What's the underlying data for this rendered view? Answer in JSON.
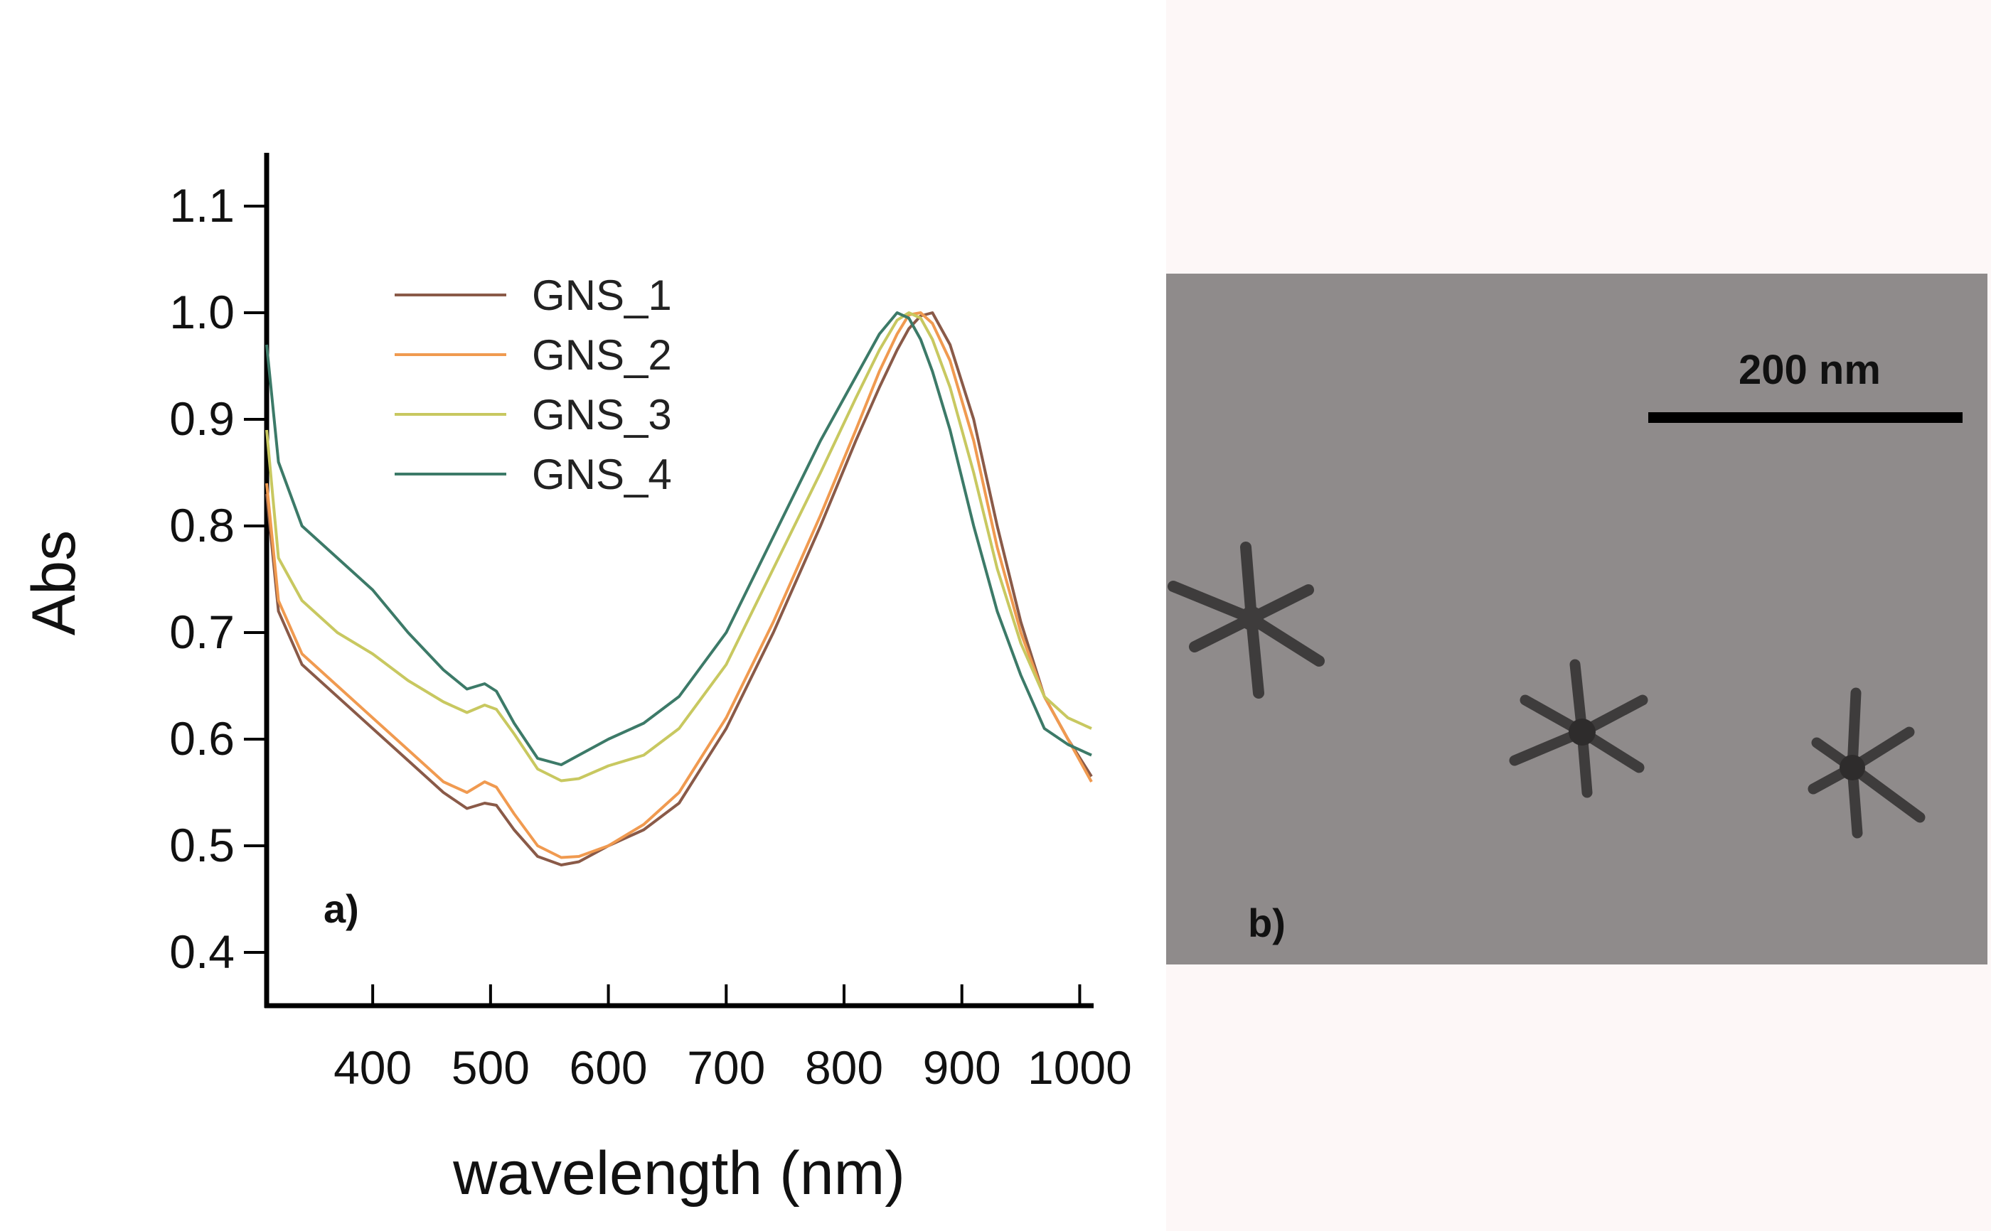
{
  "chart_data": {
    "type": "line",
    "title": "",
    "xlabel": "wavelength (nm)",
    "ylabel": "Abs",
    "xlim": [
      310,
      1010
    ],
    "ylim": [
      0.35,
      1.15
    ],
    "xticks": [
      400,
      500,
      600,
      700,
      800,
      900,
      1000
    ],
    "xtick_labels": [
      "400",
      "500",
      "600",
      "700",
      "800",
      "900",
      "1000"
    ],
    "yticks": [
      0.4,
      0.5,
      0.6,
      0.7,
      0.8,
      0.9,
      1.0,
      1.1
    ],
    "ytick_labels": [
      "0.4",
      "0.5",
      "0.6",
      "0.7",
      "0.8",
      "0.9",
      "1.0",
      "1.1"
    ],
    "legend_position": "top-left",
    "panel_label": "a)",
    "x": [
      310,
      320,
      340,
      370,
      400,
      430,
      460,
      480,
      495,
      505,
      520,
      540,
      560,
      575,
      600,
      630,
      660,
      700,
      740,
      780,
      810,
      830,
      845,
      855,
      865,
      875,
      890,
      910,
      930,
      950,
      970,
      990,
      1010
    ],
    "series": [
      {
        "name": "GNS_1",
        "color": "#8a5a48",
        "values": [
          0.83,
          0.72,
          0.67,
          0.64,
          0.61,
          0.58,
          0.55,
          0.535,
          0.54,
          0.538,
          0.515,
          0.49,
          0.482,
          0.485,
          0.5,
          0.515,
          0.54,
          0.61,
          0.7,
          0.8,
          0.88,
          0.93,
          0.965,
          0.985,
          0.997,
          1.0,
          0.97,
          0.9,
          0.8,
          0.71,
          0.64,
          0.6,
          0.565
        ]
      },
      {
        "name": "GNS_2",
        "color": "#f09a50",
        "values": [
          0.84,
          0.73,
          0.68,
          0.65,
          0.62,
          0.59,
          0.56,
          0.55,
          0.56,
          0.555,
          0.53,
          0.5,
          0.489,
          0.49,
          0.5,
          0.52,
          0.55,
          0.62,
          0.71,
          0.81,
          0.89,
          0.945,
          0.98,
          0.998,
          1.0,
          0.99,
          0.955,
          0.88,
          0.78,
          0.7,
          0.64,
          0.6,
          0.56
        ]
      },
      {
        "name": "GNS_3",
        "color": "#c8c860",
        "values": [
          0.89,
          0.77,
          0.73,
          0.7,
          0.68,
          0.655,
          0.635,
          0.625,
          0.632,
          0.628,
          0.605,
          0.572,
          0.561,
          0.563,
          0.575,
          0.585,
          0.61,
          0.67,
          0.76,
          0.85,
          0.92,
          0.965,
          0.993,
          1.0,
          0.995,
          0.975,
          0.93,
          0.85,
          0.76,
          0.69,
          0.64,
          0.62,
          0.61
        ]
      },
      {
        "name": "GNS_4",
        "color": "#3c7a68",
        "values": [
          0.97,
          0.86,
          0.8,
          0.77,
          0.74,
          0.7,
          0.665,
          0.647,
          0.652,
          0.645,
          0.615,
          0.582,
          0.576,
          0.585,
          0.6,
          0.615,
          0.64,
          0.7,
          0.79,
          0.88,
          0.94,
          0.98,
          1.0,
          0.995,
          0.975,
          0.945,
          0.89,
          0.8,
          0.72,
          0.66,
          0.61,
          0.595,
          0.585
        ]
      }
    ]
  },
  "image_panel": {
    "panel_label": "b)",
    "scale_bar_label": "200 nm",
    "background_color": "#8f8b8b",
    "particle_color": "#3e3c3c"
  }
}
